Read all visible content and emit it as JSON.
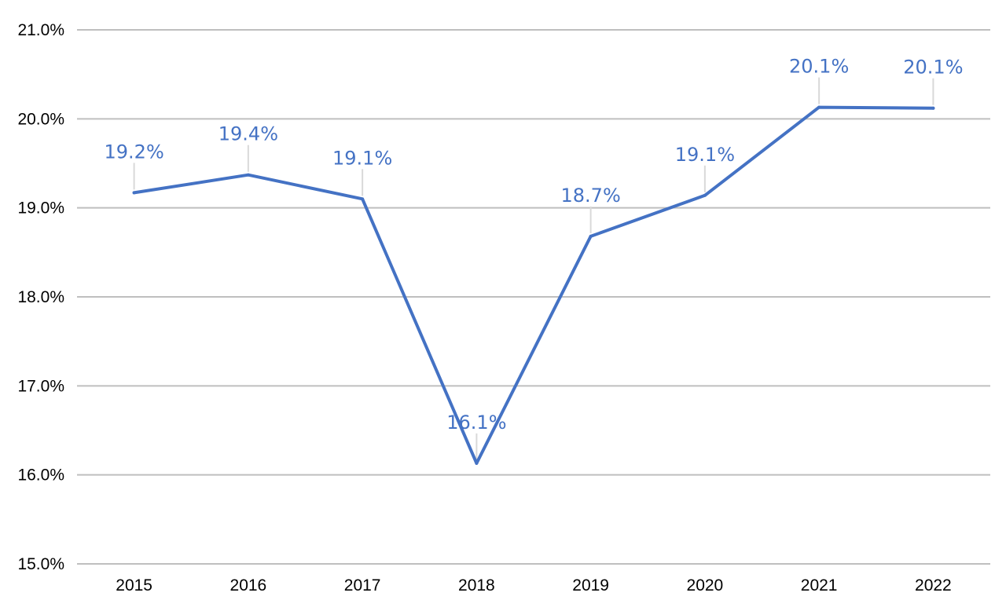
{
  "chart_data": {
    "type": "line",
    "categories": [
      "2015",
      "2016",
      "2017",
      "2018",
      "2019",
      "2020",
      "2021",
      "2022"
    ],
    "series": [
      {
        "values": [
          19.17,
          19.37,
          19.1,
          16.13,
          18.68,
          19.14,
          20.13,
          20.12
        ],
        "labels": [
          "19.2%",
          "19.4%",
          "19.1%",
          "16.1%",
          "18.7%",
          "19.1%",
          "20.1%",
          "20.1%"
        ]
      }
    ],
    "y_ticks": [
      "15.0%",
      "16.0%",
      "17.0%",
      "18.0%",
      "19.0%",
      "20.0%",
      "21.0%"
    ],
    "ylim": [
      15.0,
      21.0
    ],
    "grid": true,
    "legend": "none",
    "title": "",
    "xlabel": "",
    "ylabel": ""
  },
  "colors": {
    "line": "#4472C4",
    "label": "#4472C4",
    "grid": "#BFBFBF",
    "leader": "#D9D9D9"
  }
}
